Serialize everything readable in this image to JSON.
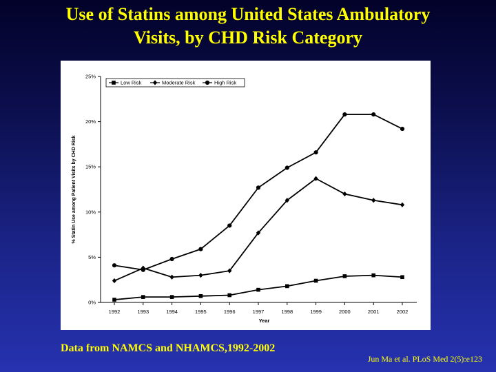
{
  "slide": {
    "title_line1": "Use of Statins among United States Ambulatory",
    "title_line2": "Visits, by CHD Risk Category",
    "source": "Data from NAMCS and NHAMCS,1992-2002",
    "citation": "Jun Ma et al. PLoS Med 2(5):e123"
  },
  "colors": {
    "title": "#ffff00",
    "line": "#000000"
  },
  "chart_data": {
    "type": "line",
    "title": "",
    "xlabel": "Year",
    "ylabel": "% Statin Use among Patient Visits by CHD Risk",
    "x": [
      "1992",
      "1993",
      "1994",
      "1995",
      "1996",
      "1997",
      "1998",
      "1999",
      "2000",
      "2001",
      "2002"
    ],
    "ylim": [
      0,
      25
    ],
    "yticks": [
      0,
      5,
      10,
      15,
      20,
      25
    ],
    "ytick_labels": [
      "0%",
      "5%",
      "10%",
      "15%",
      "20%",
      "25%"
    ],
    "legend_position": "top-left",
    "grid": false,
    "series": [
      {
        "name": "Low Risk",
        "marker": "square",
        "values": [
          0.3,
          0.6,
          0.6,
          0.7,
          0.8,
          1.4,
          1.8,
          2.4,
          2.9,
          3.0,
          2.8
        ]
      },
      {
        "name": "Moderate Risk",
        "marker": "diamond",
        "values": [
          2.4,
          3.8,
          2.8,
          3.0,
          3.5,
          7.7,
          11.3,
          13.7,
          12.0,
          11.3,
          10.8
        ]
      },
      {
        "name": "High Risk",
        "marker": "circle",
        "values": [
          4.1,
          3.6,
          4.8,
          5.9,
          8.5,
          12.7,
          14.9,
          16.6,
          20.8,
          20.8,
          19.2
        ]
      }
    ]
  }
}
